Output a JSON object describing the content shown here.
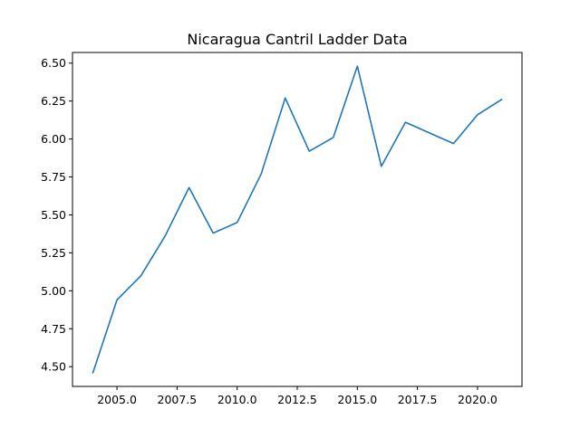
{
  "chart_data": {
    "type": "line",
    "title": "Nicaragua Cantril Ladder Data",
    "xlabel": "",
    "ylabel": "",
    "x": [
      2004,
      2005,
      2006,
      2007,
      2008,
      2009,
      2010,
      2011,
      2012,
      2013,
      2014,
      2015,
      2016,
      2017,
      2019,
      2020,
      2021
    ],
    "series": [
      {
        "color": "#1f77b4",
        "values": [
          4.46,
          4.94,
          5.1,
          5.36,
          5.68,
          5.38,
          5.45,
          5.77,
          6.27,
          5.92,
          6.01,
          6.48,
          5.82,
          6.11,
          5.97,
          6.16,
          6.26
        ]
      }
    ],
    "xlim": [
      2003.15,
      2021.85
    ],
    "ylim": [
      4.37,
      6.57
    ],
    "xticks": [
      2005.0,
      2007.5,
      2010.0,
      2012.5,
      2015.0,
      2017.5,
      2020.0
    ],
    "xtick_labels": [
      "2005.0",
      "2007.5",
      "2010.0",
      "2012.5",
      "2015.0",
      "2017.5",
      "2020.0"
    ],
    "yticks": [
      4.5,
      4.75,
      5.0,
      5.25,
      5.5,
      5.75,
      6.0,
      6.25,
      6.5
    ],
    "ytick_labels": [
      "4.50",
      "4.75",
      "5.00",
      "5.25",
      "5.50",
      "5.75",
      "6.00",
      "6.25",
      "6.50"
    ],
    "grid": false,
    "legend": "none"
  }
}
